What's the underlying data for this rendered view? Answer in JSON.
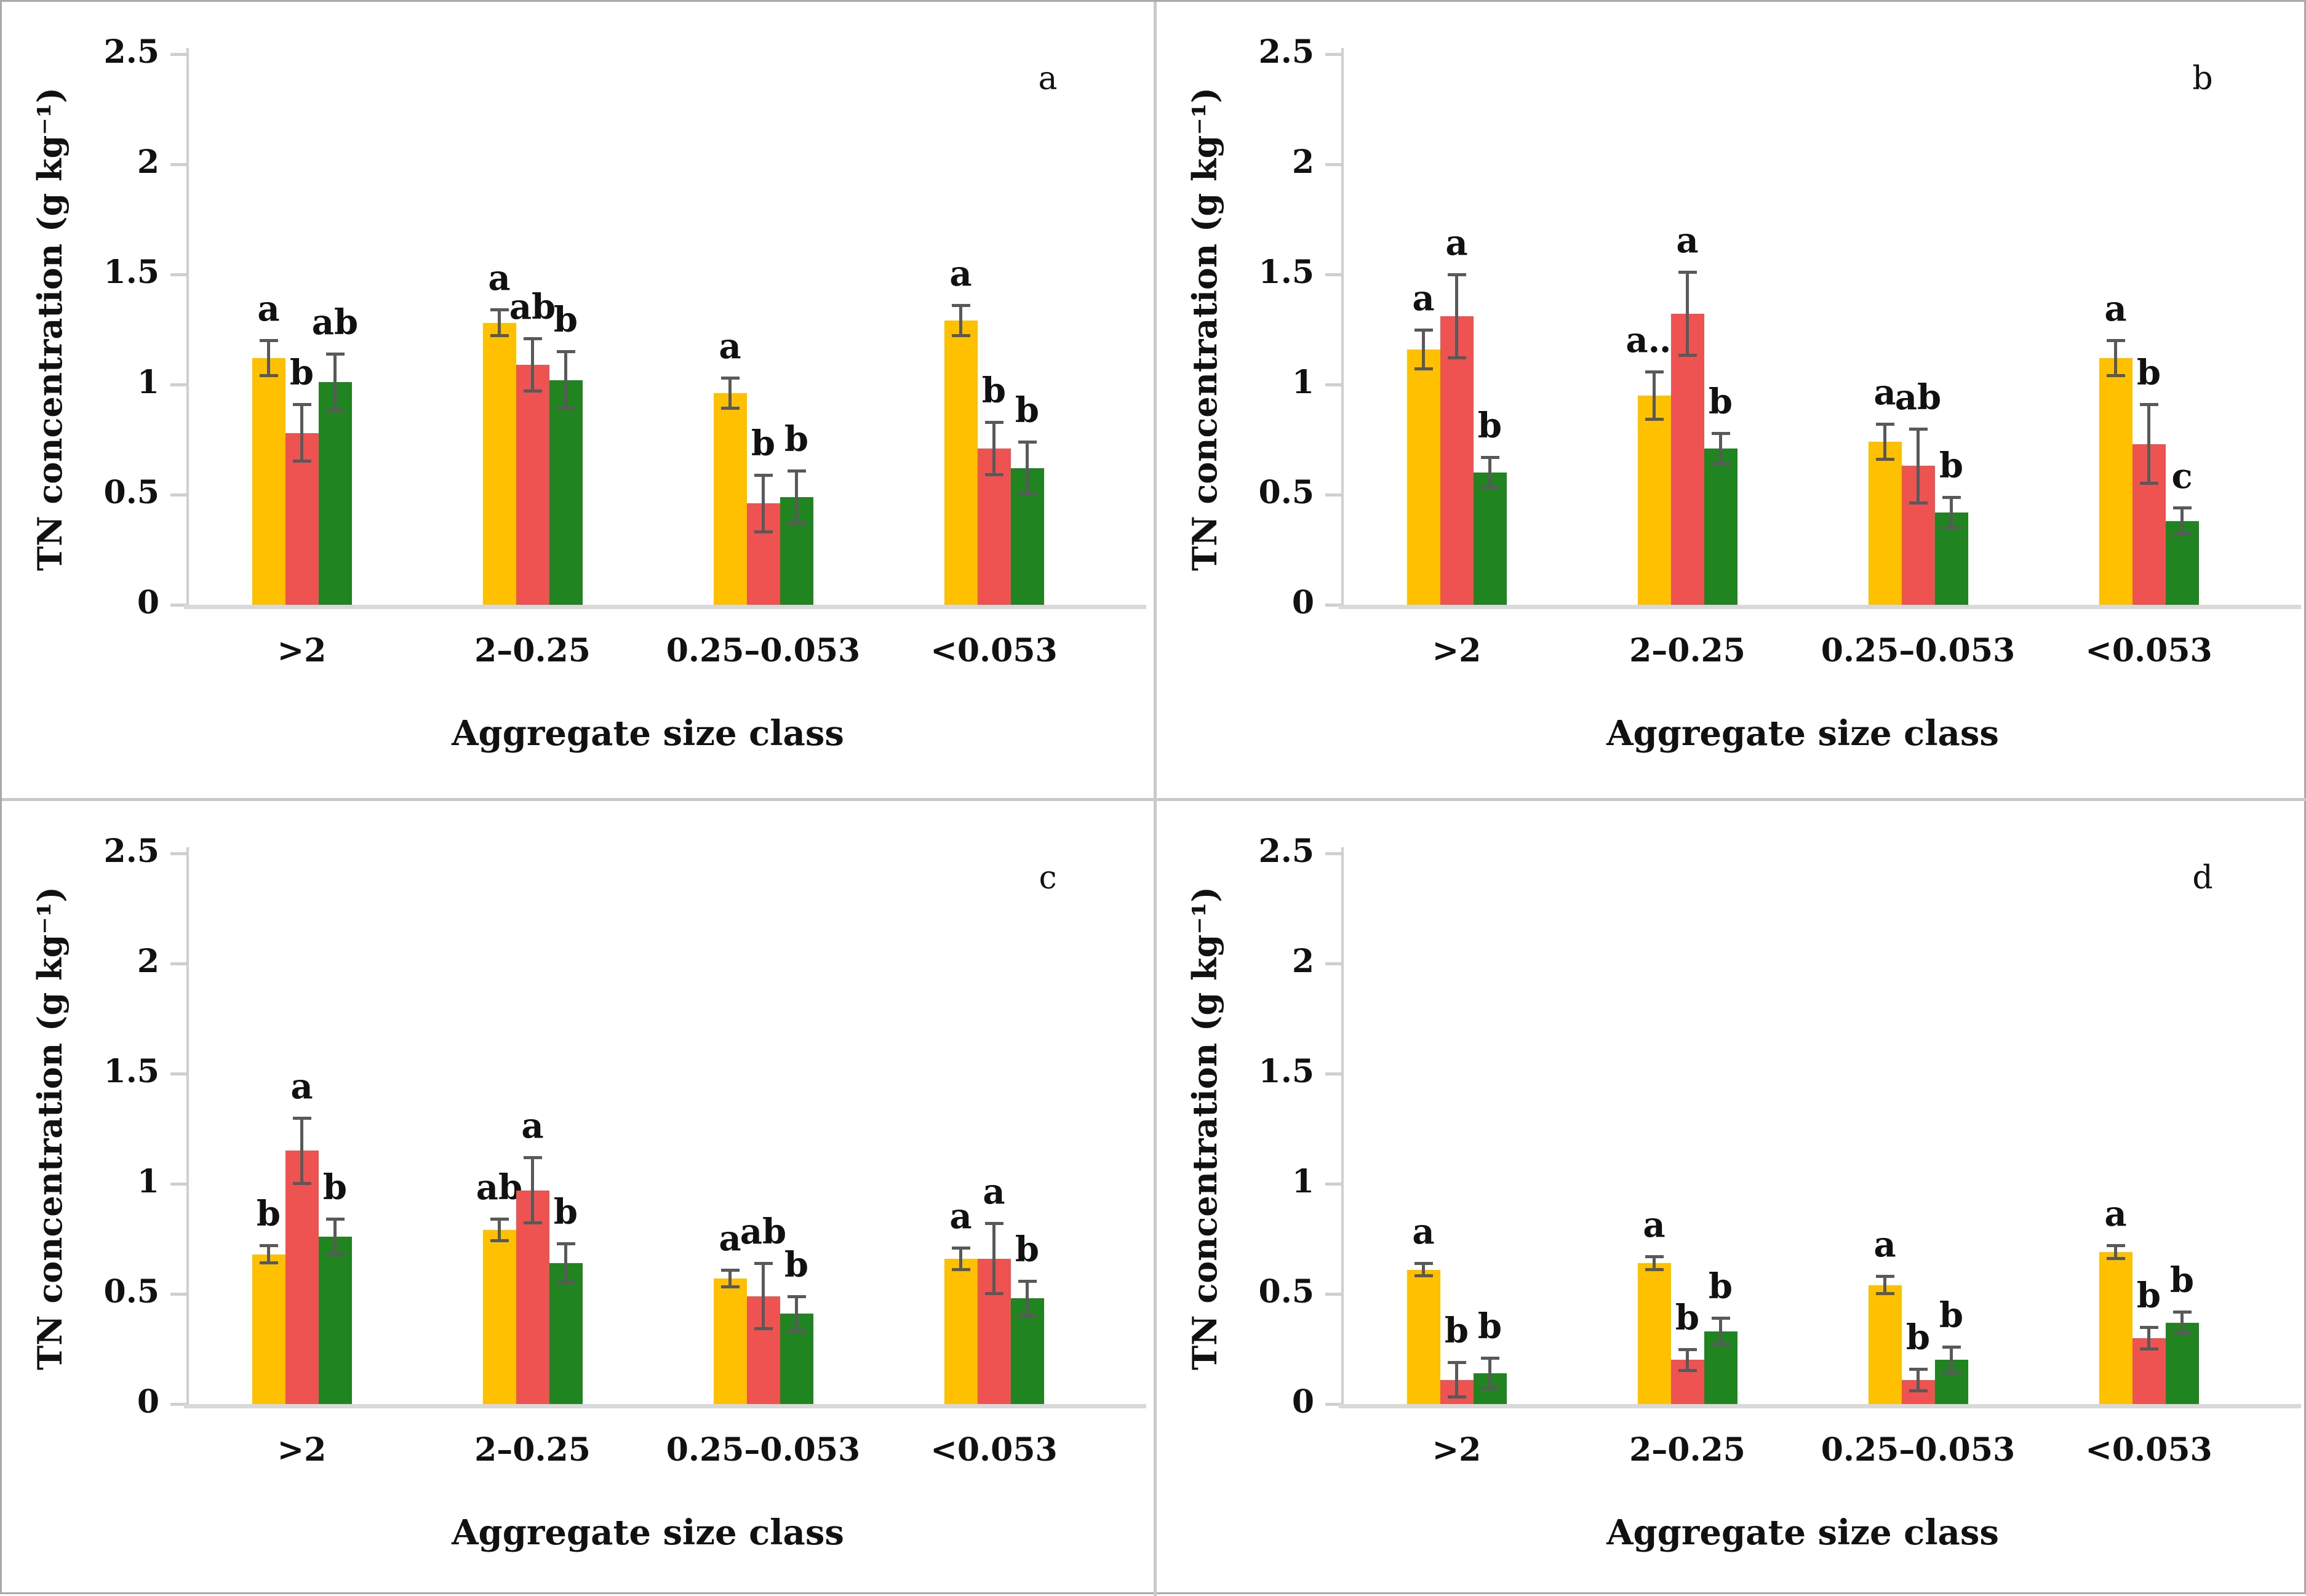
{
  "figure": {
    "description": "Four-panel clustered bar chart figure",
    "panel_letters": [
      "a",
      "b",
      "c",
      "d"
    ],
    "shared_ylabel": "TN concentration (g kg⁻¹)",
    "shared_xlabel": "Aggregate size class",
    "colors": {
      "yellow": "#FFC000",
      "red": "#EE5351",
      "green": "#208420",
      "error_bar": "#595959",
      "axis": "#cfcfcf",
      "baseline": "#d9d9d9",
      "border": "#a9a9a9",
      "divider": "#c9c9c9"
    }
  },
  "chart_data": [
    {
      "type": "bar",
      "panel_label": "a",
      "xlabel": "Aggregate size class",
      "ylabel": "TN concentration (g kg⁻¹)",
      "ylim": [
        0,
        2.5
      ],
      "yticks": [
        "0",
        "0.5",
        "1",
        "1.5",
        "2",
        "2.5"
      ],
      "grid": false,
      "legend": null,
      "categories": [
        ">2",
        "2–0.25",
        "0.25–0.053",
        "<0.053"
      ],
      "series": [
        {
          "name": "yellow",
          "color": "#FFC000",
          "values": [
            1.12,
            1.28,
            0.96,
            1.29
          ],
          "errors": [
            0.08,
            0.06,
            0.07,
            0.07
          ],
          "sig_letters": [
            "a",
            "a",
            "a",
            "a"
          ]
        },
        {
          "name": "red",
          "color": "#EE5351",
          "values": [
            0.78,
            1.09,
            0.46,
            0.71
          ],
          "errors": [
            0.13,
            0.12,
            0.13,
            0.12
          ],
          "sig_letters": [
            "b",
            "ab",
            "b",
            "b"
          ]
        },
        {
          "name": "green",
          "color": "#208420",
          "values": [
            1.01,
            1.02,
            0.49,
            0.62
          ],
          "errors": [
            0.13,
            0.13,
            0.12,
            0.12
          ],
          "sig_letters": [
            "ab",
            "b",
            "b",
            "b"
          ]
        }
      ]
    },
    {
      "type": "bar",
      "panel_label": "b",
      "xlabel": "Aggregate size class",
      "ylabel": "TN concentration (g kg⁻¹)",
      "ylim": [
        0,
        2.5
      ],
      "yticks": [
        "0",
        "0.5",
        "1",
        "1.5",
        "2",
        "2.5"
      ],
      "grid": false,
      "legend": null,
      "categories": [
        ">2",
        "2–0.25",
        "0.25–0.053",
        "<0.053"
      ],
      "series": [
        {
          "name": "yellow",
          "color": "#FFC000",
          "values": [
            1.16,
            0.95,
            0.74,
            1.12
          ],
          "errors": [
            0.09,
            0.11,
            0.08,
            0.08
          ],
          "sig_letters": [
            "a",
            "a…",
            "a",
            "a"
          ]
        },
        {
          "name": "red",
          "color": "#EE5351",
          "values": [
            1.31,
            1.32,
            0.63,
            0.73
          ],
          "errors": [
            0.19,
            0.19,
            0.17,
            0.18
          ],
          "sig_letters": [
            "a",
            "a",
            "ab",
            "b"
          ]
        },
        {
          "name": "green",
          "color": "#208420",
          "values": [
            0.6,
            0.71,
            0.42,
            0.38
          ],
          "errors": [
            0.07,
            0.07,
            0.07,
            0.06
          ],
          "sig_letters": [
            "b",
            "b",
            "b",
            "c"
          ]
        }
      ]
    },
    {
      "type": "bar",
      "panel_label": "c",
      "xlabel": "Aggregate size class",
      "ylabel": "TN concentration (g kg⁻¹)",
      "ylim": [
        0,
        2.5
      ],
      "yticks": [
        "0",
        "0.5",
        "1",
        "1.5",
        "2",
        "2.5"
      ],
      "grid": false,
      "legend": null,
      "categories": [
        ">2",
        "2–0.25",
        "0.25–0.053",
        "<0.053"
      ],
      "series": [
        {
          "name": "yellow",
          "color": "#FFC000",
          "values": [
            0.68,
            0.79,
            0.57,
            0.66
          ],
          "errors": [
            0.04,
            0.05,
            0.04,
            0.05
          ],
          "sig_letters": [
            "b",
            "ab",
            "a",
            "a"
          ]
        },
        {
          "name": "red",
          "color": "#EE5351",
          "values": [
            1.15,
            0.97,
            0.49,
            0.66
          ],
          "errors": [
            0.15,
            0.15,
            0.15,
            0.16
          ],
          "sig_letters": [
            "a",
            "a",
            "ab",
            "a"
          ]
        },
        {
          "name": "green",
          "color": "#208420",
          "values": [
            0.76,
            0.64,
            0.41,
            0.48
          ],
          "errors": [
            0.08,
            0.09,
            0.08,
            0.08
          ],
          "sig_letters": [
            "b",
            "b",
            "b",
            "b"
          ]
        }
      ]
    },
    {
      "type": "bar",
      "panel_label": "d",
      "xlabel": "Aggregate size class",
      "ylabel": "TN concentration (g kg⁻¹)",
      "ylim": [
        0,
        2.5
      ],
      "yticks": [
        "0",
        "0.5",
        "1",
        "1.5",
        "2",
        "2.5"
      ],
      "grid": false,
      "legend": null,
      "categories": [
        ">2",
        "2–0.25",
        "0.25–0.053",
        "<0.053"
      ],
      "series": [
        {
          "name": "yellow",
          "color": "#FFC000",
          "values": [
            0.61,
            0.64,
            0.54,
            0.69
          ],
          "errors": [
            0.03,
            0.03,
            0.04,
            0.03
          ],
          "sig_letters": [
            "a",
            "a",
            "a",
            "a"
          ]
        },
        {
          "name": "red",
          "color": "#EE5351",
          "values": [
            0.11,
            0.2,
            0.11,
            0.3
          ],
          "errors": [
            0.08,
            0.05,
            0.05,
            0.05
          ],
          "sig_letters": [
            "b",
            "b",
            "b",
            "b"
          ]
        },
        {
          "name": "green",
          "color": "#208420",
          "values": [
            0.14,
            0.33,
            0.2,
            0.37
          ],
          "errors": [
            0.07,
            0.06,
            0.06,
            0.05
          ],
          "sig_letters": [
            "b",
            "b",
            "b",
            "b"
          ]
        }
      ]
    }
  ]
}
